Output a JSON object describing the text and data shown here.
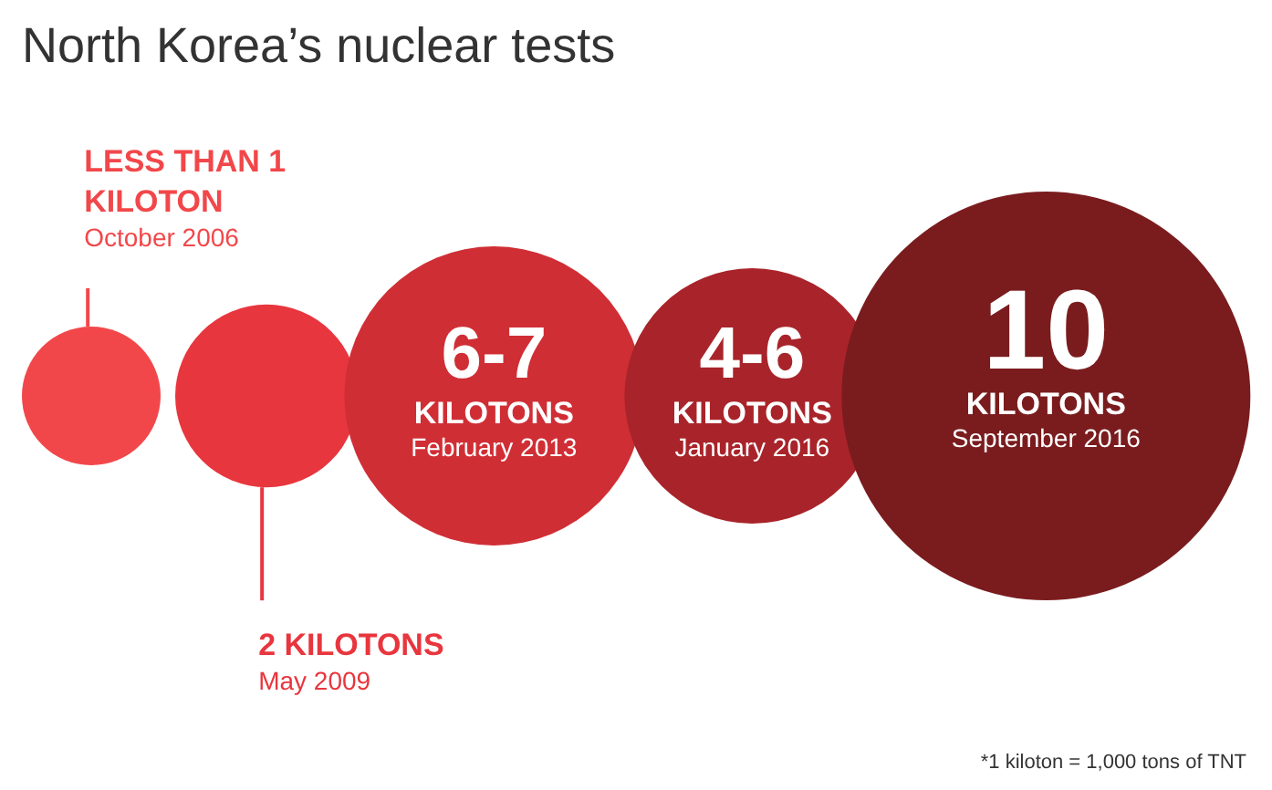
{
  "chart_data": {
    "type": "other",
    "title": "North Korea’s nuclear tests",
    "categories": [
      "October 2006",
      "May 2009",
      "February 2013",
      "January 2016",
      "September 2016"
    ],
    "values": [
      null,
      2,
      null,
      null,
      10
    ],
    "value_labels": [
      "LESS THAN 1\nKILOTON",
      "2 KILOTONS",
      "6-7\nKILOTONS",
      "4-6\nKILOTONS",
      "10\nKILOTONS"
    ],
    "colors": [
      "#f2474a",
      "#e8363e",
      "#d02e35",
      "#a8242a",
      "#7a1c1e"
    ],
    "annotations": [
      "*1 kiloton = 1,000 tons of TNT"
    ]
  }
}
